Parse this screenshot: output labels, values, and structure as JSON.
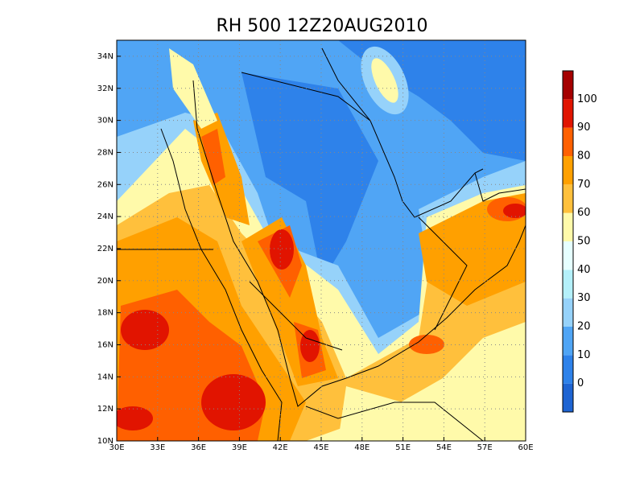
{
  "title": "RH 500 12Z20AUG2010",
  "map": {
    "lon_labels": [
      "30E",
      "33E",
      "36E",
      "39E",
      "42E",
      "45E",
      "48E",
      "51E",
      "54E",
      "57E",
      "60E"
    ],
    "lat_labels": [
      "10N",
      "12N",
      "14N",
      "16N",
      "18N",
      "20N",
      "22N",
      "24N",
      "26N",
      "28N",
      "30N",
      "32N",
      "34N"
    ]
  },
  "colorbar": {
    "levels": [
      0,
      10,
      20,
      30,
      40,
      50,
      60,
      70,
      80,
      90,
      100
    ],
    "colors": [
      "#1e64d2",
      "#2e82ea",
      "#50a5f5",
      "#96d2fa",
      "#b4f0fa",
      "#e6ffff",
      "#fffaaa",
      "#ffc03c",
      "#ffa000",
      "#ff6000",
      "#e11400",
      "#a50000"
    ]
  }
}
